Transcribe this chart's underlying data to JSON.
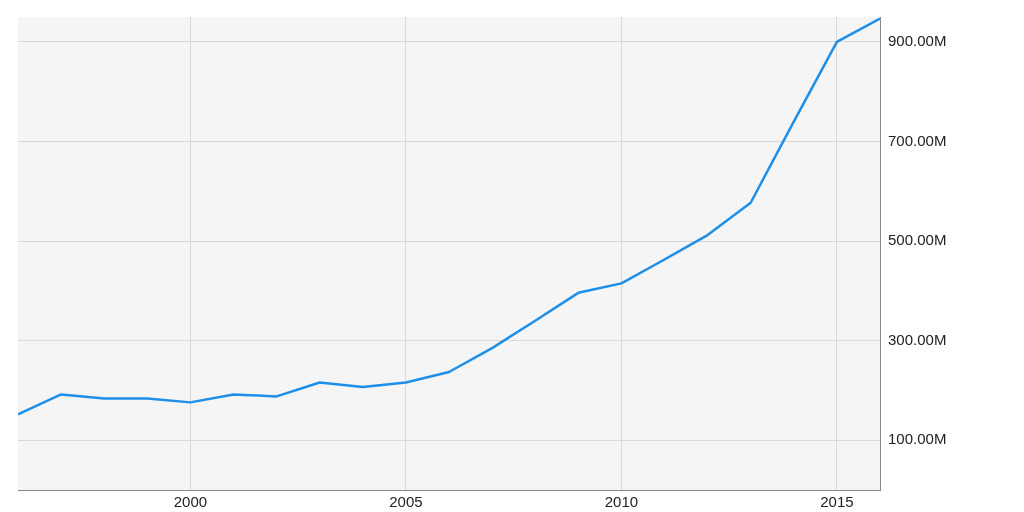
{
  "chart_data": {
    "type": "line",
    "x": [
      1996,
      1997,
      1998,
      1999,
      2000,
      2001,
      2002,
      2003,
      2004,
      2005,
      2006,
      2007,
      2008,
      2009,
      2010,
      2011,
      2012,
      2013,
      2014,
      2015,
      2016
    ],
    "series": [
      {
        "color": "#1e8fe8",
        "values": [
          152,
          192,
          184,
          184,
          176,
          192,
          188,
          216,
          207,
          216,
          237,
          285,
          340,
          396,
          415,
          463,
          512,
          577,
          740,
          900,
          947
        ]
      }
    ],
    "xlim": [
      1996,
      2016
    ],
    "xticks": [
      2000,
      2005,
      2010,
      2015
    ],
    "ylim": [
      0,
      950
    ],
    "yticks": [
      {
        "value": 100,
        "label": "100.00M"
      },
      {
        "value": 300,
        "label": "300.00M"
      },
      {
        "value": 500,
        "label": "500.00M"
      },
      {
        "value": 700,
        "label": "700.00M"
      },
      {
        "value": 900,
        "label": "900.00M"
      }
    ],
    "grid": true,
    "legend": false,
    "marker": "none",
    "line_style": "solid"
  }
}
